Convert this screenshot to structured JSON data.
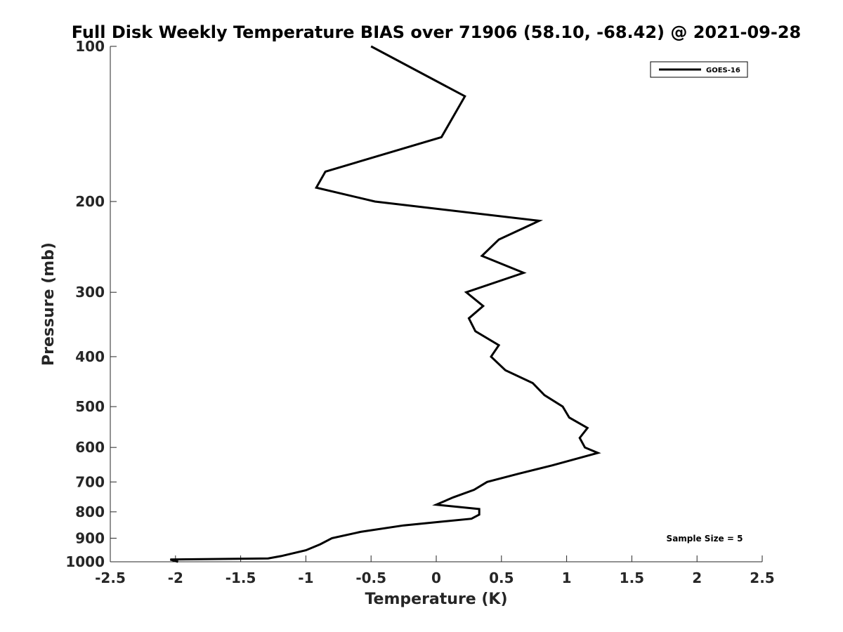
{
  "chart_data": {
    "type": "line",
    "title": "Full Disk Weekly Temperature BIAS over 71906 (58.10, -68.42) @ 2021-09-28",
    "xlabel": "Temperature (K)",
    "ylabel": "Pressure (mb)",
    "xlim": [
      -2.5,
      2.5
    ],
    "ylim": [
      1000,
      100
    ],
    "yscale": "log",
    "y_reversed": true,
    "xticks": [
      -2.5,
      -2,
      -1.5,
      -1,
      -0.5,
      0,
      0.5,
      1,
      1.5,
      2,
      2.5
    ],
    "xtick_labels": [
      "-2.5",
      "-2",
      "-1.5",
      "-1",
      "-0.5",
      "0",
      "0.5",
      "1",
      "1.5",
      "2",
      "2.5"
    ],
    "yticks": [
      100,
      200,
      300,
      400,
      500,
      600,
      700,
      800,
      900,
      1000
    ],
    "ytick_labels": [
      "100",
      "200",
      "300",
      "400",
      "500",
      "600",
      "700",
      "800",
      "900",
      "1000"
    ],
    "grid": false,
    "legend_position": "top-right",
    "line_color": "#000000",
    "series": [
      {
        "name": "GOES-16",
        "x": [
          -0.5,
          0.22,
          0.04,
          -0.85,
          -0.92,
          -0.47,
          0.79,
          0.48,
          0.35,
          0.67,
          0.23,
          0.36,
          0.25,
          0.3,
          0.48,
          0.42,
          0.53,
          0.74,
          0.83,
          0.97,
          1.02,
          1.16,
          1.1,
          1.14,
          1.24,
          0.89,
          0.63,
          0.39,
          0.29,
          0.13,
          0,
          0.33,
          0.33,
          0.27,
          -0.25,
          -0.58,
          -0.8,
          -0.89,
          -1,
          -1.19,
          -1.29,
          -2.04,
          -1.98
        ],
        "y": [
          100,
          125,
          150,
          175,
          188,
          200,
          218,
          237,
          255,
          275,
          300,
          319,
          337,
          357,
          380,
          400,
          425,
          450,
          475,
          500,
          525,
          550,
          575,
          600,
          615,
          650,
          675,
          700,
          725,
          750,
          775,
          790,
          810,
          825,
          850,
          875,
          900,
          925,
          950,
          975,
          985,
          990,
          1000
        ]
      }
    ],
    "annotations": [
      "Sample Size = 5"
    ]
  }
}
